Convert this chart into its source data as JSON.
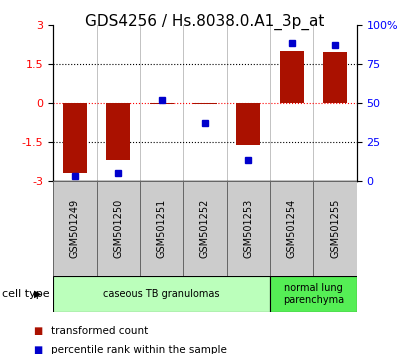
{
  "title": "GDS4256 / Hs.8038.0.A1_3p_at",
  "samples": [
    "GSM501249",
    "GSM501250",
    "GSM501251",
    "GSM501252",
    "GSM501253",
    "GSM501254",
    "GSM501255"
  ],
  "red_bars": [
    -2.7,
    -2.2,
    -0.05,
    -0.05,
    -1.62,
    2.0,
    1.95
  ],
  "blue_squares_pct": [
    3,
    5,
    52,
    37,
    13,
    88,
    87
  ],
  "ylim_left": [
    -3,
    3
  ],
  "ylim_right": [
    0,
    100
  ],
  "y_ticks_left": [
    -3,
    -1.5,
    0,
    1.5,
    3
  ],
  "y_ticks_right": [
    0,
    25,
    50,
    75,
    100
  ],
  "y_ticks_right_labels": [
    "0",
    "25",
    "50",
    "75",
    "100%"
  ],
  "dotted_lines_black": [
    -1.5,
    1.5
  ],
  "dotted_line_red": 0,
  "groups": [
    {
      "label": "caseous TB granulomas",
      "samples_idx": [
        0,
        1,
        2,
        3,
        4
      ],
      "color": "#bbffbb"
    },
    {
      "label": "normal lung\nparenchyma",
      "samples_idx": [
        5,
        6
      ],
      "color": "#55ee55"
    }
  ],
  "cell_type_label": "cell type",
  "legend_items": [
    {
      "color": "#aa1100",
      "label": "transformed count"
    },
    {
      "color": "#0000cc",
      "label": "percentile rank within the sample"
    }
  ],
  "bar_color": "#aa1100",
  "square_color": "#0000cc",
  "bar_width": 0.55,
  "title_fontsize": 11,
  "tick_fontsize": 8,
  "sample_box_color": "#cccccc",
  "sample_box_edge": "#888888"
}
